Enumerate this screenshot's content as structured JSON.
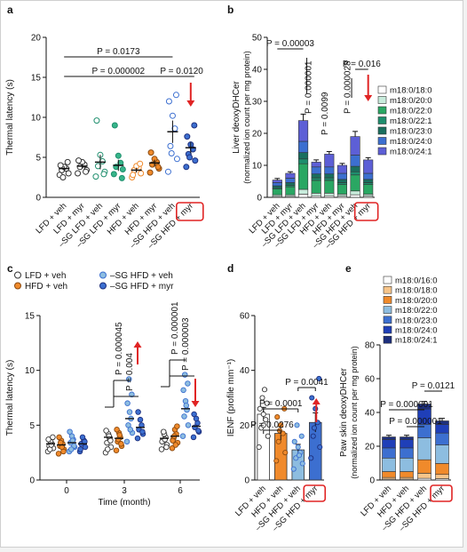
{
  "panel_labels": [
    "a",
    "b",
    "c",
    "d",
    "e"
  ],
  "colors": {
    "white": "#ffffff",
    "light_teal": "#c8ecdc",
    "teal": "#37b58a",
    "dark_teal": "#1e8e6d",
    "green": "#2aa763",
    "orange": "#f08a2b",
    "peach": "#f7c58a",
    "light_blue": "#8dbde0",
    "blue": "#3c6fd0",
    "navy": "#1d2f7d",
    "purple": "#5d5fd6",
    "red": "#e02424"
  },
  "chart_data": [
    {
      "panel": "a",
      "type": "scatter",
      "ylabel": "Thermal latency (s)",
      "ylim": [
        0,
        20
      ],
      "yticks": [
        0,
        5,
        10,
        15,
        20
      ],
      "categories": [
        "LFD + veh",
        "LFD + myr",
        "–SG LFD + veh",
        "–SG LFD + myr",
        "HFD + veh",
        "HFD + myr",
        "–SG HFD + veh",
        "–SG HFD + myr"
      ],
      "means": [
        3.6,
        3.9,
        4.4,
        4.0,
        3.4,
        4.3,
        8.2,
        6.2
      ],
      "sem": [
        0.3,
        0.3,
        0.9,
        0.7,
        0.3,
        0.4,
        1.4,
        0.7
      ],
      "points": [
        [
          2.8,
          3.0,
          3.4,
          3.6,
          3.8,
          4.0,
          4.4,
          2.5
        ],
        [
          3.0,
          3.4,
          3.8,
          4.1,
          4.4,
          4.6,
          3.2
        ],
        [
          2.6,
          3.2,
          3.9,
          4.5,
          5.3,
          9.6,
          2.9
        ],
        [
          2.9,
          3.5,
          3.8,
          4.3,
          5.2,
          9.0,
          2.4
        ],
        [
          2.5,
          3.0,
          3.4,
          3.7,
          3.9,
          2.8,
          4.2
        ],
        [
          3.1,
          3.6,
          4.1,
          4.4,
          4.8,
          5.6,
          3.8
        ],
        [
          3.2,
          4.8,
          6.4,
          8.6,
          10.2,
          12.0,
          12.8,
          5.5
        ],
        [
          3.8,
          4.6,
          5.4,
          6.0,
          6.6,
          7.6,
          9.0,
          5.0
        ]
      ],
      "comparisons": [
        {
          "label": "P = 0.0173",
          "from": 0,
          "to": 6
        },
        {
          "label": "P = 0.000002",
          "from": 0,
          "to": 6
        },
        {
          "label": "P = 0.0120",
          "from": 6,
          "to": 7
        }
      ]
    },
    {
      "panel": "b",
      "type": "bar",
      "ylabel": "Liver deoxyDHCer",
      "ylabel2": "(normalized ion count per mg protein)",
      "ylim": [
        0,
        50
      ],
      "yticks": [
        0,
        10,
        20,
        30,
        40,
        50
      ],
      "categories": [
        "LFD + veh",
        "LFD + myr",
        "–SG LFD + veh",
        "–SG LFD + myr",
        "HFD + veh",
        "HFD + myr",
        "–SG HFD + veh",
        "–SG HFD + myr"
      ],
      "series": [
        {
          "name": "m18:0/18:0",
          "values": [
            0.3,
            0.3,
            1.0,
            0.5,
            0.5,
            0.4,
            0.8,
            0.4
          ]
        },
        {
          "name": "m18:0/20:0",
          "values": [
            0.5,
            0.5,
            1.5,
            0.8,
            0.8,
            0.6,
            1.2,
            0.6
          ]
        },
        {
          "name": "m18:0/22:0",
          "values": [
            1.8,
            2.5,
            8.0,
            4.0,
            4.0,
            3.0,
            5.0,
            3.0
          ]
        },
        {
          "name": "m18:0/22:1",
          "values": [
            0.4,
            0.5,
            1.5,
            0.8,
            0.8,
            0.6,
            1.0,
            0.6
          ]
        },
        {
          "name": "m18:0/23:0",
          "values": [
            0.6,
            0.8,
            2.0,
            1.2,
            1.2,
            1.0,
            1.7,
            1.0
          ]
        },
        {
          "name": "m18:0/24:0",
          "values": [
            1.0,
            1.4,
            3.5,
            2.2,
            2.2,
            1.9,
            3.5,
            1.9
          ]
        },
        {
          "name": "m18:0/24:1",
          "values": [
            0.8,
            1.5,
            6.5,
            1.5,
            4.0,
            2.5,
            5.8,
            4.2
          ]
        }
      ],
      "totals_sem": [
        0.5,
        0.5,
        2.0,
        0.7,
        0.8,
        0.6,
        1.6,
        0.7
      ],
      "comparisons": [
        {
          "label": "P = 0.00003",
          "from": 0,
          "to": 2
        },
        {
          "label": "P = 0.000001",
          "from": 2,
          "to": 3,
          "vertical": true
        },
        {
          "label": "P = 0.0099",
          "from": 0,
          "to": 4,
          "vertical": true
        },
        {
          "label": "P = 0.000028",
          "from": 4,
          "to": 6,
          "vertical": true
        },
        {
          "label": "P = 0.016",
          "from": 6,
          "to": 7
        }
      ]
    },
    {
      "panel": "c",
      "type": "scatter",
      "xlabel": "Time (month)",
      "ylabel": "Thermal latency (s)",
      "ylim": [
        0,
        15
      ],
      "yticks": [
        0,
        5,
        10,
        15
      ],
      "x": [
        0,
        3,
        6
      ],
      "series": [
        {
          "name": "LFD + veh",
          "means": [
            3.3,
            3.9,
            3.8
          ],
          "points": [
            [
              2.6,
              2.9,
              3.1,
              3.3,
              3.5,
              3.7,
              3.9,
              2.8,
              3.2
            ],
            [
              2.5,
              3.0,
              3.4,
              3.8,
              4.2,
              4.5,
              3.6,
              2.8,
              4.0
            ],
            [
              2.8,
              3.2,
              3.6,
              3.9,
              4.2,
              3.5,
              3.0,
              4.4,
              3.7
            ]
          ]
        },
        {
          "name": "HFD + veh",
          "means": [
            3.2,
            3.8,
            4.0
          ],
          "points": [
            [
              2.4,
              2.8,
              3.1,
              3.3,
              3.6,
              3.9,
              2.6,
              3.4,
              3.0
            ],
            [
              2.7,
              3.1,
              3.5,
              3.9,
              4.3,
              4.6,
              3.3,
              3.7,
              4.1
            ],
            [
              2.9,
              3.4,
              3.8,
              4.2,
              4.6,
              3.6,
              4.9,
              4.0,
              3.2
            ]
          ]
        },
        {
          "name": "–SG HFD + veh",
          "means": [
            3.4,
            5.6,
            6.5
          ],
          "points": [
            [
              2.6,
              3.0,
              3.4,
              3.7,
              4.0,
              4.4,
              3.1,
              2.8,
              3.6
            ],
            [
              3.5,
              4.3,
              5.0,
              5.6,
              6.2,
              7.0,
              7.8,
              9.2,
              4.6
            ],
            [
              4.0,
              5.0,
              5.8,
              6.4,
              7.2,
              8.2,
              8.8,
              9.6,
              6.8
            ]
          ]
        },
        {
          "name": "–SG HFD + myr",
          "means": [
            3.3,
            4.8,
            4.9
          ],
          "points": [
            [
              2.6,
              3.0,
              3.3,
              3.6,
              3.9,
              2.8,
              3.5
            ],
            [
              3.8,
              4.2,
              4.6,
              5.0,
              5.5,
              6.2,
              4.4
            ],
            [
              3.9,
              4.4,
              4.8,
              5.2,
              5.6,
              6.0,
              4.5
            ]
          ]
        }
      ],
      "comparisons": [
        {
          "label": "P = 0.000045",
          "x": 3
        },
        {
          "label": "P = 0.004",
          "x": 3
        },
        {
          "label": "P = 0.000001",
          "x": 6
        },
        {
          "label": "P = 0.000003",
          "x": 6
        }
      ]
    },
    {
      "panel": "d",
      "type": "bar",
      "ylabel": "IENF (profile mm⁻¹)",
      "ylim": [
        0,
        60
      ],
      "yticks": [
        0,
        20,
        40,
        60
      ],
      "categories": [
        "LFD + veh",
        "HFD + veh",
        "–SG HFD + veh",
        "–SG HFD + myr"
      ],
      "values": [
        24,
        17,
        11,
        21
      ],
      "sem": [
        2.5,
        2.5,
        2.0,
        3.5
      ],
      "points": [
        [
          12,
          16,
          19,
          22,
          24,
          26,
          28,
          30,
          33,
          20
        ],
        [
          7,
          10,
          14,
          17,
          20,
          23,
          26,
          18
        ],
        [
          4,
          6,
          8,
          10,
          12,
          14,
          16,
          20,
          9
        ],
        [
          8,
          12,
          16,
          21,
          26,
          30,
          37,
          19
        ]
      ],
      "comparisons": [
        {
          "label": "P = 0.0041",
          "from": 2,
          "to": 3
        },
        {
          "label": "P = 0.0001",
          "from": 0,
          "to": 2
        },
        {
          "label": "P = 0.0276",
          "from": 0,
          "to": 1
        }
      ]
    },
    {
      "panel": "e",
      "type": "bar",
      "ylabel": "Paw skin deoxyDHCer",
      "ylabel2": "(normalized ion count per mg protein)",
      "ylim": [
        0,
        80
      ],
      "yticks": [
        0,
        20,
        40,
        60,
        80
      ],
      "categories": [
        "LFD + veh",
        "HFD + veh",
        "–SG HFD + veh",
        "–SG HFD + myr"
      ],
      "series": [
        {
          "name": "m18:0/16:0",
          "values": [
            0.5,
            0.5,
            1.0,
            0.8
          ]
        },
        {
          "name": "m18:0/18:0",
          "values": [
            1.0,
            1.0,
            3.0,
            2.5
          ]
        },
        {
          "name": "m18:0/20:0",
          "values": [
            3.5,
            3.5,
            8.0,
            6.5
          ]
        },
        {
          "name": "m18:0/22:0",
          "values": [
            8.0,
            8.0,
            13.0,
            11.0
          ]
        },
        {
          "name": "m18:0/23:0",
          "values": [
            6.0,
            6.0,
            8.0,
            7.0
          ]
        },
        {
          "name": "m18:0/24:0",
          "values": [
            5.0,
            5.0,
            9.0,
            5.0
          ]
        },
        {
          "name": "m18:0/24:1",
          "values": [
            1.5,
            1.5,
            3.0,
            2.2
          ]
        }
      ],
      "totals_sem": [
        1.0,
        1.0,
        1.5,
        1.5
      ],
      "comparisons": [
        {
          "label": "P = 0.0121",
          "from": 2,
          "to": 3
        },
        {
          "label": "P = 0.000001",
          "from": 0,
          "to": 2
        },
        {
          "label": "P = 0.000001",
          "from": 1,
          "to": 2
        }
      ]
    }
  ]
}
